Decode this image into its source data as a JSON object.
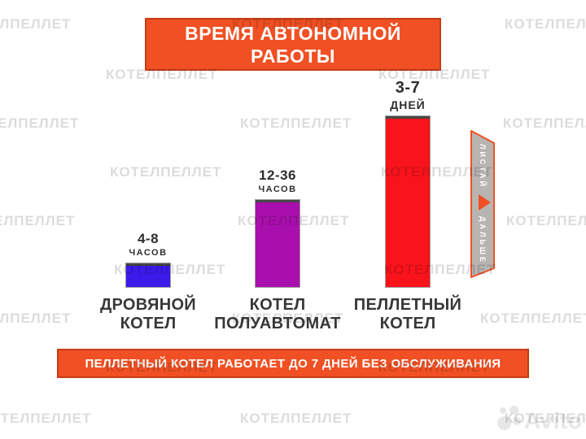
{
  "watermark": {
    "text": "КОТЕЛПЕЛЛЕТ",
    "color": "#dcdcdc"
  },
  "title": {
    "line1": "ВРЕМЯ АВТОНОМНОЙ",
    "line2": "РАБОТЫ",
    "bg": "#F05023"
  },
  "chart_data": {
    "type": "bar",
    "title": "ВРЕМЯ АВТОНОМНОЙ РАБОТЫ",
    "xlabel": "",
    "ylabel": "",
    "grid": false,
    "axes_visible": false,
    "categories": [
      "ДРОВЯНОЙ КОТЕЛ",
      "КОТЕЛ ПОЛУАВТОМАТ",
      "ПЕЛЛЕТНЫЙ КОТЕЛ"
    ],
    "bars": [
      {
        "category_line1": "ДРОВЯНОЙ",
        "category_line2": "КОТЕЛ",
        "range": "4-8",
        "unit": "ЧАСОВ",
        "value_label": "4-8 ЧАСОВ",
        "min_hours": 4,
        "max_hours": 8,
        "color": "#3B1AEA",
        "height_px": "29px"
      },
      {
        "category_line1": "КОТЕЛ",
        "category_line2": "ПОЛУАВТОМАТ",
        "range": "12-36",
        "unit": "ЧАСОВ",
        "value_label": "12-36 ЧАСОВ",
        "min_hours": 12,
        "max_hours": 36,
        "color": "#A90FAC",
        "height_px": "107px"
      },
      {
        "category_line1": "ПЕЛЛЕТНЫЙ",
        "category_line2": "КОТЕЛ",
        "range": "3-7",
        "unit": "ДНЕЙ",
        "value_label": "3-7 ДНЕЙ",
        "min_hours": 72,
        "max_hours": 168,
        "color": "#F9131B",
        "height_px": "210px"
      }
    ]
  },
  "banner": {
    "text": "ПЕЛЛЕТНЫЙ КОТЕЛ РАБОТАЕТ ДО 7 ДНЕЙ БЕЗ ОБСЛУЖИВАНИЯ"
  },
  "ribbon": {
    "word1": "ЛИСТАЙ",
    "word2": "ДАЛЬШЕ"
  },
  "logo": {
    "text": "Avito"
  }
}
